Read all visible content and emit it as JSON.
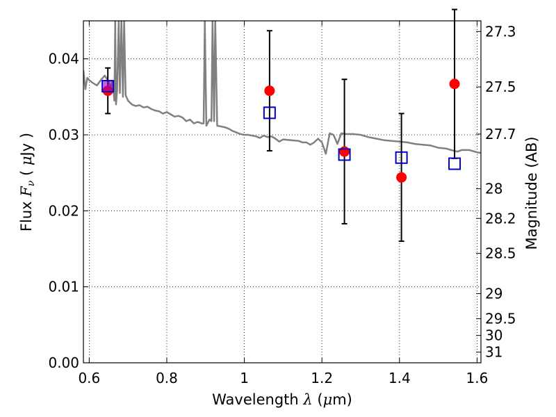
{
  "chart_data": {
    "type": "scatter",
    "title": "",
    "xlabel": {
      "prefix": "Wavelength ",
      "symbol": "λ",
      "unit_open": " (",
      "unit_mu": "μ",
      "unit_rest": "m)"
    },
    "ylabel": {
      "prefix": "Flux ",
      "symbol": "F",
      "sub": "ν",
      "unit_open": " ( ",
      "unit_mu": "μ",
      "unit_rest": "Jy )"
    },
    "y2label": "Magnitude (AB)",
    "xlim": [
      0.585,
      1.61
    ],
    "ylim": [
      0.0,
      0.045
    ],
    "grid": true,
    "x_ticks": [
      {
        "value": 0.6,
        "label": "0.6"
      },
      {
        "value": 0.8,
        "label": "0.8"
      },
      {
        "value": 1.0,
        "label": "1"
      },
      {
        "value": 1.2,
        "label": "1.2"
      },
      {
        "value": 1.4,
        "label": "1.4"
      },
      {
        "value": 1.6,
        "label": "1.6"
      }
    ],
    "y_ticks": [
      {
        "value": 0.0,
        "label": "0.00"
      },
      {
        "value": 0.01,
        "label": "0.01"
      },
      {
        "value": 0.02,
        "label": "0.02"
      },
      {
        "value": 0.03,
        "label": "0.03"
      },
      {
        "value": 0.04,
        "label": "0.04"
      }
    ],
    "y2_ticks": [
      {
        "flux": 0.0436,
        "label": "27.3"
      },
      {
        "flux": 0.0363,
        "label": "27.5"
      },
      {
        "flux": 0.0301,
        "label": "27.7"
      },
      {
        "flux": 0.0229,
        "label": "28"
      },
      {
        "flux": 0.019,
        "label": "28.2"
      },
      {
        "flux": 0.0144,
        "label": "28.5"
      },
      {
        "flux": 0.0091,
        "label": "29"
      },
      {
        "flux": 0.0058,
        "label": "29.5"
      },
      {
        "flux": 0.0036,
        "label": "30"
      },
      {
        "flux": 0.0014,
        "label": "31"
      }
    ],
    "colors": {
      "model": "#808080",
      "observed": "#ff0000",
      "synthetic": "#0000cc",
      "overlap": "#9900cc",
      "errorbar": "#000000"
    },
    "model_spectrum": [
      [
        0.585,
        0.0385
      ],
      [
        0.59,
        0.036
      ],
      [
        0.595,
        0.0375
      ],
      [
        0.6,
        0.0372
      ],
      [
        0.61,
        0.0368
      ],
      [
        0.62,
        0.0365
      ],
      [
        0.63,
        0.0372
      ],
      [
        0.64,
        0.0378
      ],
      [
        0.65,
        0.037
      ],
      [
        0.655,
        0.0362
      ],
      [
        0.66,
        0.037
      ],
      [
        0.665,
        0.0345
      ],
      [
        0.667,
        0.045
      ],
      [
        0.669,
        0.034
      ],
      [
        0.672,
        0.036
      ],
      [
        0.676,
        0.045
      ],
      [
        0.679,
        0.0355
      ],
      [
        0.683,
        0.045
      ],
      [
        0.687,
        0.035
      ],
      [
        0.69,
        0.045
      ],
      [
        0.694,
        0.0352
      ],
      [
        0.7,
        0.0345
      ],
      [
        0.71,
        0.034
      ],
      [
        0.72,
        0.0338
      ],
      [
        0.73,
        0.0339
      ],
      [
        0.74,
        0.0336
      ],
      [
        0.75,
        0.0337
      ],
      [
        0.76,
        0.0334
      ],
      [
        0.77,
        0.0332
      ],
      [
        0.78,
        0.0331
      ],
      [
        0.79,
        0.0328
      ],
      [
        0.8,
        0.033
      ],
      [
        0.81,
        0.0327
      ],
      [
        0.82,
        0.0324
      ],
      [
        0.83,
        0.0325
      ],
      [
        0.84,
        0.0323
      ],
      [
        0.85,
        0.0318
      ],
      [
        0.86,
        0.032
      ],
      [
        0.87,
        0.0315
      ],
      [
        0.88,
        0.0317
      ],
      [
        0.89,
        0.0315
      ],
      [
        0.895,
        0.0315
      ],
      [
        0.898,
        0.045
      ],
      [
        0.902,
        0.0312
      ],
      [
        0.91,
        0.032
      ],
      [
        0.915,
        0.0318
      ],
      [
        0.918,
        0.045
      ],
      [
        0.922,
        0.0318
      ],
      [
        0.925,
        0.045
      ],
      [
        0.93,
        0.0312
      ],
      [
        0.94,
        0.0311
      ],
      [
        0.95,
        0.031
      ],
      [
        0.96,
        0.0308
      ],
      [
        0.97,
        0.0305
      ],
      [
        0.98,
        0.0303
      ],
      [
        0.99,
        0.0301
      ],
      [
        1.0,
        0.03
      ],
      [
        1.01,
        0.03
      ],
      [
        1.02,
        0.0299
      ],
      [
        1.03,
        0.0298
      ],
      [
        1.04,
        0.0296
      ],
      [
        1.05,
        0.0299
      ],
      [
        1.06,
        0.0297
      ],
      [
        1.07,
        0.0298
      ],
      [
        1.08,
        0.0295
      ],
      [
        1.09,
        0.0291
      ],
      [
        1.1,
        0.0294
      ],
      [
        1.12,
        0.0293
      ],
      [
        1.14,
        0.0292
      ],
      [
        1.15,
        0.029
      ],
      [
        1.16,
        0.029
      ],
      [
        1.17,
        0.0287
      ],
      [
        1.18,
        0.029
      ],
      [
        1.19,
        0.0295
      ],
      [
        1.2,
        0.029
      ],
      [
        1.21,
        0.0275
      ],
      [
        1.22,
        0.0302
      ],
      [
        1.23,
        0.03
      ],
      [
        1.24,
        0.0288
      ],
      [
        1.25,
        0.0302
      ],
      [
        1.26,
        0.0301
      ],
      [
        1.28,
        0.0301
      ],
      [
        1.3,
        0.03
      ],
      [
        1.32,
        0.0297
      ],
      [
        1.34,
        0.0295
      ],
      [
        1.36,
        0.0293
      ],
      [
        1.38,
        0.0292
      ],
      [
        1.4,
        0.0291
      ],
      [
        1.42,
        0.029
      ],
      [
        1.44,
        0.0288
      ],
      [
        1.46,
        0.0287
      ],
      [
        1.48,
        0.0286
      ],
      [
        1.5,
        0.0283
      ],
      [
        1.52,
        0.0282
      ],
      [
        1.54,
        0.0279
      ],
      [
        1.55,
        0.0278
      ],
      [
        1.56,
        0.028
      ],
      [
        1.58,
        0.028
      ],
      [
        1.6,
        0.0277
      ],
      [
        1.61,
        0.0276
      ]
    ],
    "observed": [
      {
        "x": 0.648,
        "y": 0.0358,
        "err": 0.003
      },
      {
        "x": 1.065,
        "y": 0.0358,
        "err": 0.0079
      },
      {
        "x": 1.258,
        "y": 0.0278,
        "err": 0.0095
      },
      {
        "x": 1.405,
        "y": 0.0244,
        "err": 0.0084
      },
      {
        "x": 1.542,
        "y": 0.0367,
        "err": 0.0098
      }
    ],
    "synthetic": [
      {
        "x": 0.648,
        "y": 0.0364
      },
      {
        "x": 1.065,
        "y": 0.0329
      },
      {
        "x": 1.258,
        "y": 0.0274
      },
      {
        "x": 1.405,
        "y": 0.027
      },
      {
        "x": 1.542,
        "y": 0.0262
      }
    ]
  }
}
